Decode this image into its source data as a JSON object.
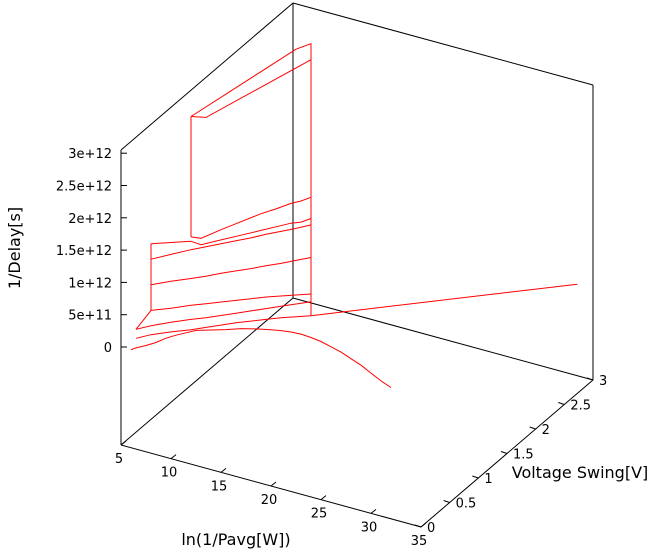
{
  "chart_data": {
    "type": "surface3d",
    "title": "",
    "xlabel": "ln(1/Pavg[W])",
    "ylabel": "Voltage Swing[V]",
    "zlabel": "1/Delay[s]",
    "xlim": [
      5,
      35
    ],
    "ylim": [
      0,
      3
    ],
    "zlim": [
      0,
      3000000000000.0
    ],
    "x_ticks": [
      "5",
      "10",
      "15",
      "20",
      "25",
      "30",
      "35"
    ],
    "y_ticks": [
      "0",
      "0.5",
      "1",
      "1.5",
      "2",
      "2.5",
      "3"
    ],
    "z_ticks": [
      "0",
      "5e+11",
      "1e+12",
      "1.5e+12",
      "2e+12",
      "2.5e+12",
      "3e+12"
    ],
    "grid": false,
    "series_color": "#ff0000",
    "box_color": "#000000",
    "curves": [
      {
        "x": [
          6.0,
          6.5,
          7.5,
          8.5,
          9.5,
          10.5,
          11.5,
          12.5,
          14.0,
          15.5,
          17.0,
          18.5,
          20.0,
          21.0,
          22.0,
          23.0,
          24.0,
          25.0,
          26.0,
          27.0,
          28.0,
          29.0,
          30.0,
          31.0,
          32.0
        ],
        "z": [
          0.0,
          50000000000.0,
          130000000000.0,
          220000000000.0,
          330000000000.0,
          420000000000.0,
          500000000000.0,
          580000000000.0,
          650000000000.0,
          720000000000.0,
          800000000000.0,
          860000000000.0,
          910000000000.0,
          940000000000.0,
          960000000000.0,
          970000000000.0,
          960000000000.0,
          940000000000.0,
          900000000000.0,
          860000000000.0,
          800000000000.0,
          740000000000.0,
          660000000000.0,
          580000000000.0,
          520000000000.0
        ]
      },
      {
        "x": [
          6.5,
          8.0,
          10.0,
          12.0,
          13.5,
          15.0,
          16.5,
          18.0,
          19.5,
          21.0,
          22.5,
          24.0
        ],
        "z": [
          200000000000.0,
          320000000000.0,
          450000000000.0,
          570000000000.0,
          670000000000.0,
          770000000000.0,
          870000000000.0,
          960000000000.0,
          1050000000000.0,
          1140000000000.0,
          1220000000000.0,
          1300000000000.0
        ]
      },
      {
        "x": [
          6.5,
          8.0,
          10.0,
          12.0,
          13.5,
          15.0,
          16.5,
          18.0,
          19.5,
          21.0,
          22.5,
          24.0
        ],
        "z": [
          340000000000.0,
          460000000000.0,
          600000000000.0,
          730000000000.0,
          820000000000.0,
          920000000000.0,
          1020000000000.0,
          1120000000000.0,
          1220000000000.0,
          1320000000000.0,
          1420000000000.0,
          1520000000000.0
        ]
      },
      {
        "x": [
          8.0,
          10.0,
          12.0,
          13.5,
          15.0,
          16.5,
          18.0,
          19.5,
          21.0,
          22.5,
          24.0
        ],
        "z": [
          700000000000.0,
          820000000000.0,
          950000000000.0,
          1040000000000.0,
          1130000000000.0,
          1220000000000.0,
          1310000000000.0,
          1400000000000.0,
          1480000000000.0,
          1560000000000.0,
          1640000000000.0
        ]
      },
      {
        "x": [
          8.0,
          10.0,
          12.0,
          13.5,
          15.0,
          16.5,
          18.0,
          19.5,
          21.0,
          22.5,
          24.0
        ],
        "z": [
          1100000000000.0,
          1240000000000.0,
          1370000000000.0,
          1470000000000.0,
          1580000000000.0,
          1680000000000.0,
          1780000000000.0,
          1890000000000.0,
          1990000000000.0,
          2100000000000.0,
          2210000000000.0
        ]
      },
      {
        "x": [
          8.0,
          10.0,
          12.0,
          13.5,
          15.0,
          16.5,
          18.0,
          19.5,
          21.0,
          22.5,
          24.0
        ],
        "z": [
          1500000000000.0,
          1660000000000.0,
          1820000000000.0,
          1930000000000.0,
          2040000000000.0,
          2150000000000.0,
          2260000000000.0,
          2380000000000.0,
          2490000000000.0,
          2600000000000.0,
          2720000000000.0
        ]
      },
      {
        "x": [
          12.0,
          13.0,
          15.0,
          17.0,
          19.0,
          20.5,
          22.0,
          23.0,
          24.0
        ],
        "z": [
          1950000000000.0,
          1940000000000.0,
          2100000000000.0,
          2260000000000.0,
          2420000000000.0,
          2540000000000.0,
          2660000000000.0,
          2720000000000.0,
          2820000000000.0
        ]
      },
      {
        "x": [
          12.0,
          13.0,
          15.0,
          17.0,
          19.0,
          20.5,
          22.0,
          23.0,
          24.0
        ],
        "z": [
          2020000000000.0,
          2040000000000.0,
          2260000000000.0,
          2470000000000.0,
          2680000000000.0,
          2820000000000.0,
          2970000000000.0,
          3050000000000.0,
          3150000000000.0
        ]
      }
    ],
    "step_lines": [
      {
        "x": [
          8.0,
          8.0,
          6.5
        ],
        "z": [
          1740000000000.0,
          700000000000.0,
          340000000000.0
        ]
      },
      {
        "x": [
          12.0,
          12.0
        ],
        "z": [
          2020000000000.0,
          3900000000000.0
        ]
      },
      {
        "x": [
          12.0,
          13.5,
          24.0,
          24.0,
          22.5,
          12.0
        ],
        "z": [
          3900000000000.0,
          3950000000000.0,
          5300000000000.0,
          5550000000000.0,
          5400000000000.0,
          3900000000000.0
        ]
      },
      {
        "x": [
          24.0,
          24.0
        ],
        "z": [
          1300000000000.0,
          5300000000000.0
        ]
      },
      {
        "x": [
          8.0,
          12.0
        ],
        "z": [
          1740000000000.0,
          1950000000000.0
        ]
      }
    ],
    "ridge": {
      "x": [
        24.0,
        34.0
      ],
      "y": [
        0.0,
        2.9
      ],
      "z": [
        1300000000000.0,
        0.0
      ]
    }
  }
}
